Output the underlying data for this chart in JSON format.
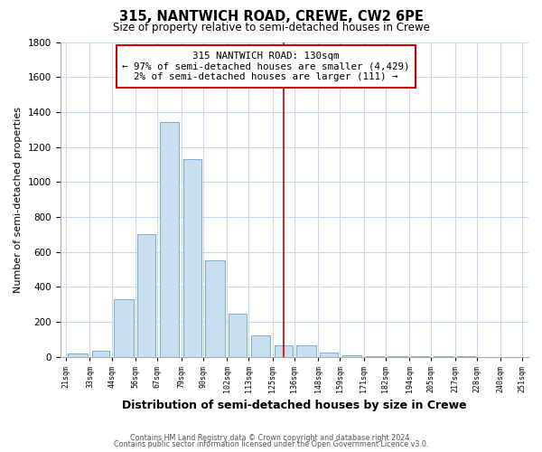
{
  "title": "315, NANTWICH ROAD, CREWE, CW2 6PE",
  "subtitle": "Size of property relative to semi-detached houses in Crewe",
  "xlabel": "Distribution of semi-detached houses by size in Crewe",
  "ylabel": "Number of semi-detached properties",
  "footer1": "Contains HM Land Registry data © Crown copyright and database right 2024.",
  "footer2": "Contains public sector information licensed under the Open Government Licence v3.0.",
  "annotation_line1": "315 NANTWICH ROAD: 130sqm",
  "annotation_line2": "← 97% of semi-detached houses are smaller (4,429)",
  "annotation_line3": "2% of semi-detached houses are larger (111) →",
  "property_line_x": 130.5,
  "bar_color": "#c8dff0",
  "bar_edge_color": "#7aaed0",
  "property_line_color": "#cc0000",
  "plot_bg_color": "#ffffff",
  "fig_bg_color": "#ffffff",
  "bins": [
    21,
    33,
    44,
    56,
    67,
    79,
    90,
    102,
    113,
    125,
    136,
    148,
    159,
    171,
    182,
    194,
    205,
    217,
    228,
    240,
    251
  ],
  "counts": [
    20,
    35,
    330,
    700,
    1340,
    1130,
    550,
    245,
    120,
    65,
    65,
    25,
    10,
    5,
    5,
    3,
    2,
    1,
    0,
    0
  ],
  "tick_labels": [
    "21sqm",
    "33sqm",
    "44sqm",
    "56sqm",
    "67sqm",
    "79sqm",
    "90sqm",
    "102sqm",
    "113sqm",
    "125sqm",
    "136sqm",
    "148sqm",
    "159sqm",
    "171sqm",
    "182sqm",
    "194sqm",
    "205sqm",
    "217sqm",
    "228sqm",
    "240sqm",
    "251sqm"
  ],
  "ylim": [
    0,
    1800
  ],
  "yticks": [
    0,
    200,
    400,
    600,
    800,
    1000,
    1200,
    1400,
    1600,
    1800
  ]
}
